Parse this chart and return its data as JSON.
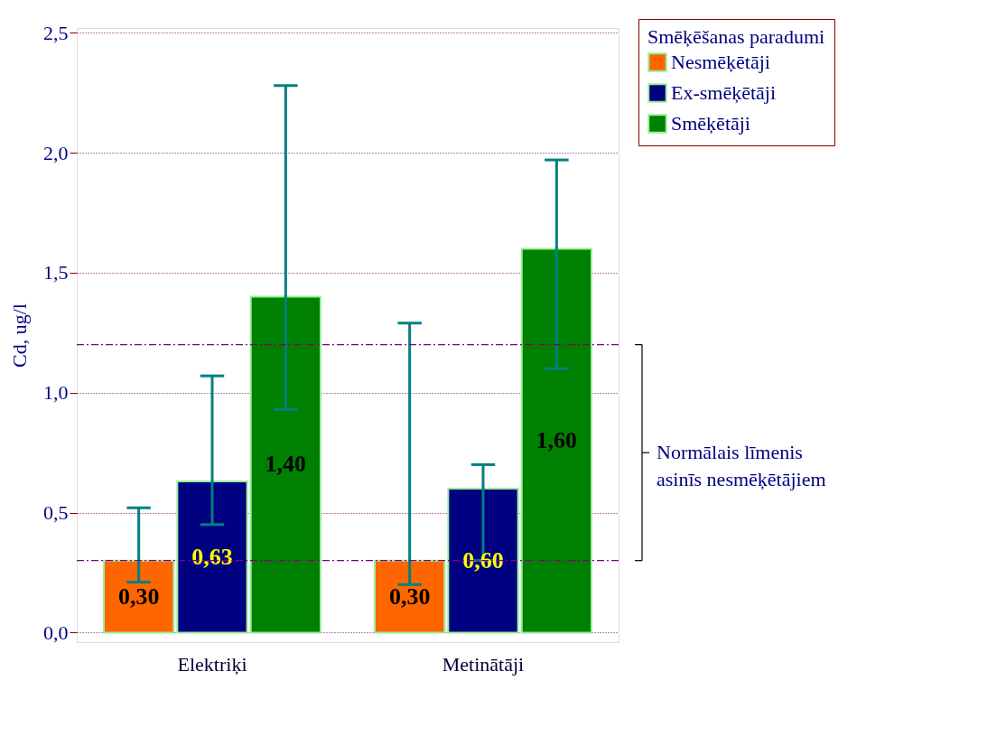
{
  "chart_data": {
    "type": "bar",
    "ylabel": "Cd, ug/l",
    "legend_title": "Smēķēšanas paradumi",
    "legend": "top right",
    "grid": "y",
    "categories": [
      "Elektriķi",
      "Metinātāji"
    ],
    "ylim": [
      -0.04,
      2.52
    ],
    "yticks": [
      {
        "value": 0,
        "label": "0,0"
      },
      {
        "value": 0.5,
        "label": "0,5"
      },
      {
        "value": 1,
        "label": "1,0"
      },
      {
        "value": 1.5,
        "label": "1,5"
      },
      {
        "value": 2,
        "label": "2,0"
      },
      {
        "value": 2.5,
        "label": "2,5"
      }
    ],
    "series": [
      {
        "name": "Nesmēķētāji",
        "color": "#ff6600",
        "values": [
          0.3,
          0.3
        ],
        "errors": [
          [
            0.21,
            0.52
          ],
          [
            0.2,
            1.29
          ]
        ],
        "value_labels": [
          "0,30",
          "0,30"
        ]
      },
      {
        "name": "Ex-smēķētāji",
        "color": "#000080",
        "values": [
          0.63,
          0.6
        ],
        "errors": [
          [
            0.45,
            1.07
          ],
          [
            0.3,
            0.7
          ]
        ],
        "value_labels": [
          "0,63",
          "0,60"
        ]
      },
      {
        "name": "Smēķētāji",
        "color": "#008000",
        "values": [
          1.4,
          1.6
        ],
        "errors": [
          [
            0.93,
            2.28
          ],
          [
            1.1,
            1.97
          ]
        ],
        "value_labels": [
          "1,40",
          "1,60"
        ]
      }
    ],
    "ref_lines": [
      {
        "axis": "y",
        "value": 0.3,
        "color": "#800080",
        "line_style": "dashdot"
      },
      {
        "axis": "y",
        "value": 1.2,
        "color": "#800080",
        "line_style": "dashdot"
      }
    ],
    "annotations": [
      "Normālais līmenis asinīs nesmēķētājiem"
    ]
  }
}
